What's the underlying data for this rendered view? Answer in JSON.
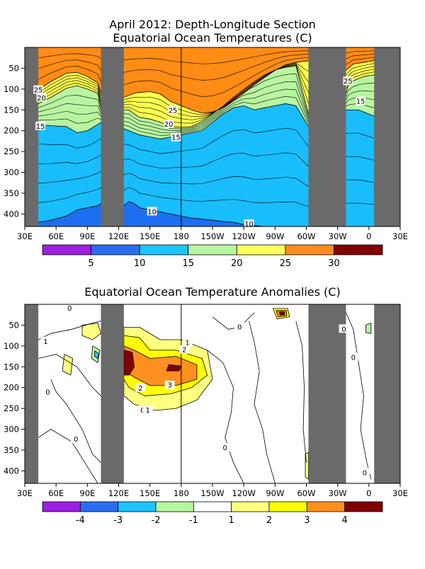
{
  "chart_data": [
    {
      "type": "heatmap",
      "title": "April 2012: Depth-Longitude Section",
      "subtitle": "Equatorial Ocean Temperatures (C)",
      "xlabel": "",
      "ylabel": "",
      "x_ticks": [
        "30E",
        "60E",
        "90E",
        "120E",
        "150E",
        "180",
        "150W",
        "120W",
        "90W",
        "60W",
        "30W",
        "0",
        "30E"
      ],
      "x_tick_values": [
        30,
        60,
        90,
        120,
        150,
        180,
        210,
        240,
        270,
        300,
        330,
        360,
        390
      ],
      "xlim": [
        30,
        390
      ],
      "y_ticks": [
        "50",
        "100",
        "150",
        "200",
        "250",
        "300",
        "350",
        "400"
      ],
      "y_tick_values": [
        50,
        100,
        150,
        200,
        250,
        300,
        350,
        400
      ],
      "ylim": [
        0,
        430
      ],
      "y_inverted": true,
      "land_masks": [
        [
          30,
          43
        ],
        [
          103,
          125
        ],
        [
          302,
          338
        ],
        [
          365,
          390
        ]
      ],
      "reference_line_lon": 180,
      "contour_levels": [
        {
          "value": 25,
          "depth": [
            102,
            82,
            62,
            60,
            70,
            85,
            110,
            120,
            115,
            110,
            108,
            106,
            112,
            130,
            140,
            150,
            158,
            155,
            145,
            128,
            110,
            90,
            72,
            55,
            42,
            36,
            32,
            55,
            40,
            38,
            36,
            34,
            32,
            30
          ],
          "lon": [
            43,
            55,
            70,
            80,
            90,
            100,
            103,
            125,
            130,
            135,
            140,
            150,
            160,
            170,
            180,
            190,
            200,
            210,
            220,
            230,
            240,
            250,
            260,
            270,
            280,
            290,
            302,
            338,
            345,
            350,
            355,
            360,
            365,
            365
          ]
        },
        {
          "value": 20,
          "depth": [
            135,
            120,
            98,
            92,
            100,
            110,
            145,
            150,
            150,
            160,
            168,
            172,
            180,
            190,
            192,
            190,
            178,
            160,
            140,
            118,
            98,
            80,
            64,
            54,
            48,
            44,
            160,
            110,
            92,
            80,
            75,
            70,
            68,
            66
          ],
          "lon": [
            43,
            55,
            70,
            80,
            90,
            100,
            103,
            125,
            130,
            135,
            140,
            150,
            160,
            170,
            180,
            190,
            200,
            210,
            220,
            230,
            240,
            250,
            260,
            270,
            280,
            290,
            302,
            338,
            340,
            345,
            350,
            355,
            360,
            365
          ]
        },
        {
          "value": 15,
          "depth": [
            185,
            188,
            190,
            205,
            200,
            185,
            180,
            195,
            200,
            205,
            210,
            215,
            220,
            215,
            210,
            205,
            200,
            180,
            160,
            145,
            140,
            150,
            145,
            140,
            135,
            140,
            190,
            150,
            150,
            150,
            150,
            155,
            160,
            165
          ],
          "lon": [
            43,
            55,
            70,
            80,
            90,
            100,
            103,
            125,
            130,
            135,
            140,
            150,
            160,
            170,
            180,
            190,
            200,
            210,
            220,
            230,
            240,
            250,
            260,
            270,
            280,
            290,
            302,
            338,
            340,
            345,
            350,
            355,
            360,
            365
          ]
        },
        {
          "value": 10,
          "depth": [
            420,
            415,
            405,
            390,
            385,
            380,
            375,
            380,
            370,
            375,
            385,
            390,
            395,
            400,
            405,
            410,
            412,
            415,
            418,
            420,
            425,
            428,
            430,
            430,
            430,
            430,
            430,
            430,
            430,
            430,
            430,
            430,
            430,
            430
          ],
          "lon": [
            43,
            55,
            70,
            80,
            90,
            100,
            103,
            125,
            130,
            135,
            140,
            150,
            160,
            170,
            180,
            190,
            200,
            210,
            220,
            230,
            240,
            250,
            260,
            270,
            280,
            290,
            302,
            338,
            340,
            345,
            350,
            355,
            360,
            365
          ]
        }
      ],
      "contour_labels": [
        {
          "text": "25",
          "lon": 43,
          "depth": 103
        },
        {
          "text": "20",
          "lon": 46,
          "depth": 122
        },
        {
          "text": "15",
          "lon": 45,
          "depth": 190
        },
        {
          "text": "25",
          "lon": 172,
          "depth": 152
        },
        {
          "text": "20",
          "lon": 168,
          "depth": 185
        },
        {
          "text": "15",
          "lon": 175,
          "depth": 217
        },
        {
          "text": "10",
          "lon": 152,
          "depth": 395
        },
        {
          "text": "10",
          "lon": 245,
          "depth": 425
        },
        {
          "text": "25",
          "lon": 340,
          "depth": 82
        },
        {
          "text": "15",
          "lon": 352,
          "depth": 130
        }
      ],
      "colorbar": {
        "colors": [
          "#9c20e0",
          "#1c6fe8",
          "#00bff0",
          "#b4f0a0",
          "#ffff78",
          "#ffa020",
          "#7a0000",
          "#ffff00",
          "#ff8c14"
        ],
        "bins": [
          [
            "#9c20e0"
          ],
          [
            "#2a6ff0"
          ],
          [
            "#1ec4ff"
          ],
          [
            "#b8f5a0"
          ],
          [
            "#ffff5a"
          ],
          [
            "#ff8c1e"
          ],
          [
            "#800000"
          ]
        ],
        "labels": [
          "5",
          "10",
          "15",
          "20",
          "25",
          "30"
        ]
      },
      "field_colors": {
        "lt10": "#1e6ff0",
        "10to15": "#19bdfb",
        "15to20": "#b8f5a0",
        "20to25": "#ffff50",
        "25to30": "#ff8c14"
      }
    },
    {
      "type": "heatmap",
      "title": "Equatorial Ocean Temperature Anomalies (C)",
      "xlabel": "",
      "ylabel": "",
      "x_ticks": [
        "30E",
        "60E",
        "90E",
        "120E",
        "150E",
        "180",
        "150W",
        "120W",
        "90W",
        "60W",
        "30W",
        "0",
        "30E"
      ],
      "x_tick_values": [
        30,
        60,
        90,
        120,
        150,
        180,
        210,
        240,
        270,
        300,
        330,
        360,
        390
      ],
      "xlim": [
        30,
        390
      ],
      "y_ticks": [
        "50",
        "100",
        "150",
        "200",
        "250",
        "300",
        "350",
        "400"
      ],
      "y_tick_values": [
        50,
        100,
        150,
        200,
        250,
        300,
        350,
        400
      ],
      "ylim": [
        0,
        430
      ],
      "y_inverted": true,
      "land_masks": [
        [
          30,
          43
        ],
        [
          103,
          125
        ],
        [
          302,
          338
        ],
        [
          365,
          390
        ]
      ],
      "reference_line_lon": 180,
      "anomaly_regions": [
        {
          "level": 1,
          "color": "#ffff80",
          "polygon": [
            [
              125,
              55
            ],
            [
              140,
              55
            ],
            [
              160,
              85
            ],
            [
              180,
              85
            ],
            [
              205,
              110
            ],
            [
              210,
              180
            ],
            [
              195,
              230
            ],
            [
              175,
              250
            ],
            [
              155,
              255
            ],
            [
              135,
              240
            ],
            [
              125,
              220
            ]
          ]
        },
        {
          "level": 2,
          "color": "#ffff00",
          "polygon": [
            [
              125,
              75
            ],
            [
              140,
              80
            ],
            [
              150,
              110
            ],
            [
              175,
              110
            ],
            [
              200,
              130
            ],
            [
              205,
              170
            ],
            [
              190,
              200
            ],
            [
              170,
              215
            ],
            [
              145,
              220
            ],
            [
              130,
              200
            ],
            [
              125,
              180
            ]
          ]
        },
        {
          "level": 3,
          "color": "#ff9020",
          "polygon": [
            [
              125,
              100
            ],
            [
              135,
              110
            ],
            [
              150,
              130
            ],
            [
              175,
              125
            ],
            [
              195,
              145
            ],
            [
              195,
              180
            ],
            [
              175,
              195
            ],
            [
              150,
              195
            ],
            [
              135,
              175
            ],
            [
              125,
              160
            ]
          ]
        },
        {
          "level": 4,
          "color": "#800000",
          "polygon": [
            [
              125,
              110
            ],
            [
              133,
              115
            ],
            [
              135,
              150
            ],
            [
              130,
              170
            ],
            [
              125,
              170
            ]
          ]
        },
        {
          "level": 4,
          "color": "#800000",
          "polygon": [
            [
              168,
              145
            ],
            [
              180,
              148
            ],
            [
              178,
              160
            ],
            [
              166,
              160
            ]
          ]
        },
        {
          "level": 1,
          "color": "#ffff80",
          "polygon": [
            [
              85,
              50
            ],
            [
              100,
              45
            ],
            [
              103,
              70
            ],
            [
              95,
              85
            ],
            [
              85,
              75
            ]
          ]
        },
        {
          "level": 1,
          "color": "#ffff80",
          "polygon": [
            [
              68,
              120
            ],
            [
              76,
              130
            ],
            [
              74,
              170
            ],
            [
              66,
              160
            ]
          ]
        },
        {
          "level": -1,
          "color": "#b8f5a0",
          "polygon": [
            [
              95,
              100
            ],
            [
              102,
              110
            ],
            [
              100,
              140
            ],
            [
              94,
              130
            ]
          ]
        },
        {
          "level": -2,
          "color": "#1ec4ff",
          "polygon": [
            [
              97,
              112
            ],
            [
              101,
              118
            ],
            [
              100,
              130
            ],
            [
              97,
              125
            ]
          ]
        },
        {
          "level": 2,
          "color": "#ffff00",
          "polygon": [
            [
              268,
              10
            ],
            [
              282,
              10
            ],
            [
              284,
              30
            ],
            [
              272,
              35
            ]
          ]
        },
        {
          "level": 3,
          "color": "#ff9020",
          "polygon": [
            [
              271,
              15
            ],
            [
              281,
              15
            ],
            [
              281,
              28
            ],
            [
              273,
              30
            ]
          ]
        },
        {
          "level": 4,
          "color": "#800000",
          "polygon": [
            [
              274,
              18
            ],
            [
              279,
              18
            ],
            [
              279,
              25
            ],
            [
              275,
              26
            ]
          ]
        },
        {
          "level": -1,
          "color": "#b8f5a0",
          "polygon": [
            [
              357,
              50
            ],
            [
              362,
              45
            ],
            [
              362,
              70
            ],
            [
              357,
              68
            ]
          ]
        },
        {
          "level": 1,
          "color": "#ffff80",
          "polygon": [
            [
              299,
              360
            ],
            [
              302,
              355
            ],
            [
              302,
              420
            ],
            [
              299,
              415
            ]
          ]
        }
      ],
      "contour_labels": [
        {
          "text": "0",
          "lon": 73,
          "depth": 10
        },
        {
          "text": "1",
          "lon": 50,
          "depth": 90
        },
        {
          "text": "1",
          "lon": 186,
          "depth": 93
        },
        {
          "text": "2",
          "lon": 183,
          "depth": 110
        },
        {
          "text": "3",
          "lon": 169,
          "depth": 195
        },
        {
          "text": "2",
          "lon": 141,
          "depth": 202
        },
        {
          "text": "0",
          "lon": 52,
          "depth": 212
        },
        {
          "text": "0",
          "lon": 143,
          "depth": 255
        },
        {
          "text": "1",
          "lon": 148,
          "depth": 255
        },
        {
          "text": "0",
          "lon": 79,
          "depth": 325
        },
        {
          "text": "0",
          "lon": 222,
          "depth": 345
        },
        {
          "text": "0",
          "lon": 236,
          "depth": 55
        },
        {
          "text": "0",
          "lon": 336,
          "depth": 60
        },
        {
          "text": "0",
          "lon": 345,
          "depth": 128
        },
        {
          "text": "0",
          "lon": 356,
          "depth": 405
        }
      ],
      "colorbar": {
        "bins": [
          [
            "#9c20e0"
          ],
          [
            "#2a6ff0"
          ],
          [
            "#1ec4ff"
          ],
          [
            "#b8f5a0"
          ],
          [
            "#ffffff"
          ],
          [
            "#ffff80"
          ],
          [
            "#ffff00"
          ],
          [
            "#ff9020"
          ],
          [
            "#800000"
          ]
        ],
        "labels": [
          "-4",
          "-3",
          "-2",
          "-1",
          "1",
          "2",
          "3",
          "4"
        ]
      }
    }
  ]
}
